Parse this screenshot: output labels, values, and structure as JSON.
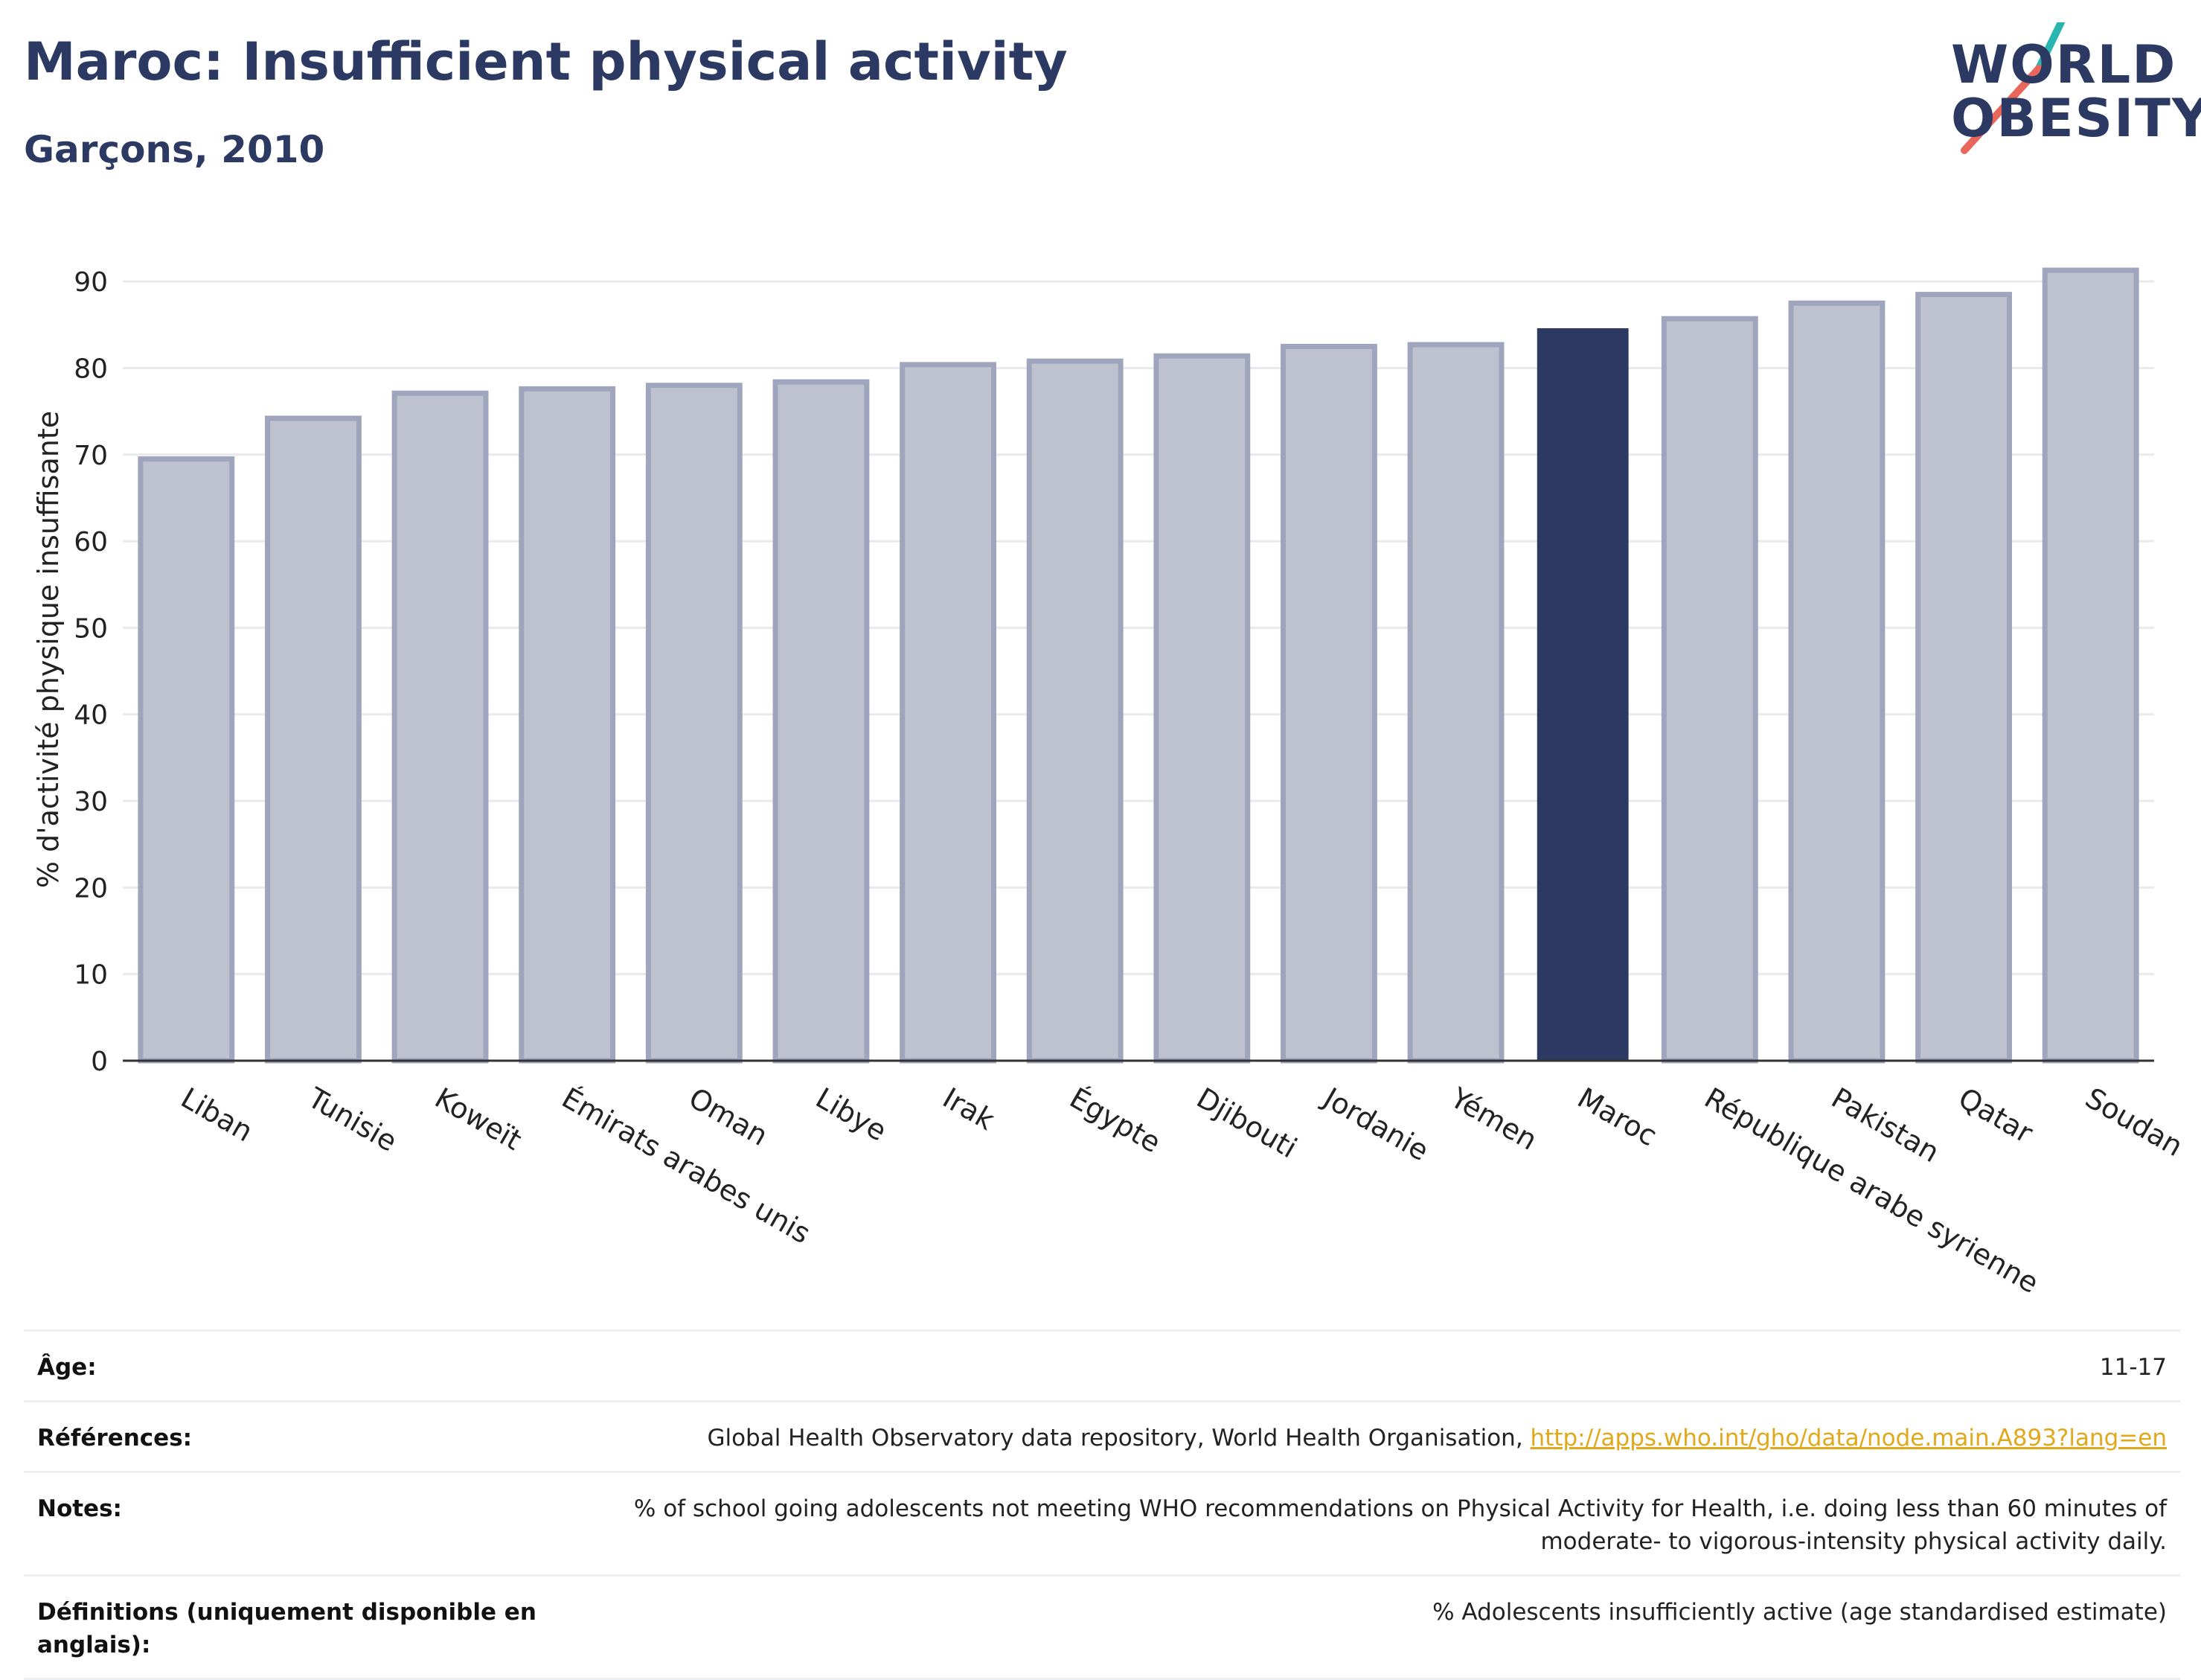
{
  "header": {
    "title": "Maroc: Insufficient physical activity",
    "subtitle": "Garçons, 2010"
  },
  "logo": {
    "line1": "WORLD",
    "line2": "OBESITY",
    "colors": {
      "teal": "#2bb5b0",
      "coral": "#e8675a",
      "navy": "#2c3a63"
    }
  },
  "chart_data": {
    "type": "bar",
    "ylabel": "% d'activité physique insuffisante",
    "ylim": [
      0,
      95
    ],
    "yticks": [
      0,
      10,
      20,
      30,
      40,
      50,
      60,
      70,
      80,
      90
    ],
    "grid": true,
    "categories": [
      "Liban",
      "Tunisie",
      "Koweït",
      "Émirats arabes unis",
      "Oman",
      "Libye",
      "Irak",
      "Égypte",
      "Djibouti",
      "Jordanie",
      "Yémen",
      "Maroc",
      "République arabe syrienne",
      "Pakistan",
      "Qatar",
      "Soudan"
    ],
    "values": [
      69.5,
      74.2,
      77.1,
      77.6,
      78.0,
      78.4,
      80.4,
      80.8,
      81.4,
      82.5,
      82.7,
      84.6,
      85.7,
      87.5,
      88.5,
      91.3
    ],
    "highlight": "Maroc",
    "colors": {
      "bar": "#bec1ce",
      "bar_border": "#9fa5bc",
      "highlight": "#2c3a63"
    }
  },
  "meta": [
    {
      "label": "Âge:",
      "value": "11-17"
    },
    {
      "label": "Références:",
      "value": "Global Health Observatory data repository, World Health Organisation, ",
      "link": "http://apps.who.int/gho/data/node.main.A893?lang=en"
    },
    {
      "label": "Notes:",
      "value": "% of school going adolescents not meeting WHO recommendations on Physical Activity for Health, i.e. doing less than 60 minutes of moderate- to vigorous-intensity physical activity daily."
    },
    {
      "label": "Définitions (uniquement disponible en anglais):",
      "value": "% Adolescents insufficiently active (age standardised estimate)"
    }
  ]
}
